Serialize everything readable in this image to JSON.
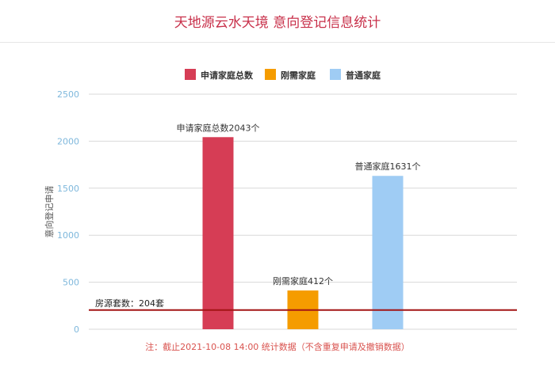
{
  "title": "天地源云水天境 意向登记信息统计",
  "note": "注：截止2021-10-08 14:00 统计数据（不含重复申请及撤销数据）",
  "colors": {
    "title": "#c8304a",
    "axis_tick": "#7fb8dc",
    "grid": "#d9d9d9",
    "reference_line": "#a31515"
  },
  "chart_data": {
    "type": "bar",
    "title": "天地源云水天境 意向登记信息统计",
    "xlabel": "",
    "ylabel": "意向登记申请",
    "ylim": [
      0,
      2500
    ],
    "yticks": [
      0,
      500,
      1000,
      1500,
      2000,
      2500
    ],
    "grid": true,
    "legend_position": "top",
    "series": [
      {
        "name": "申请家庭总数",
        "value": 2043,
        "label": "申请家庭总数2043个",
        "color": "#d63d55"
      },
      {
        "name": "刚需家庭",
        "value": 412,
        "label": "刚需家庭412个",
        "color": "#f59c00"
      },
      {
        "name": "普通家庭",
        "value": 1631,
        "label": "普通家庭1631个",
        "color": "#9fccf4"
      }
    ],
    "reference_line": {
      "value": 204,
      "label": "房源套数：204套",
      "color": "#a31515"
    }
  }
}
